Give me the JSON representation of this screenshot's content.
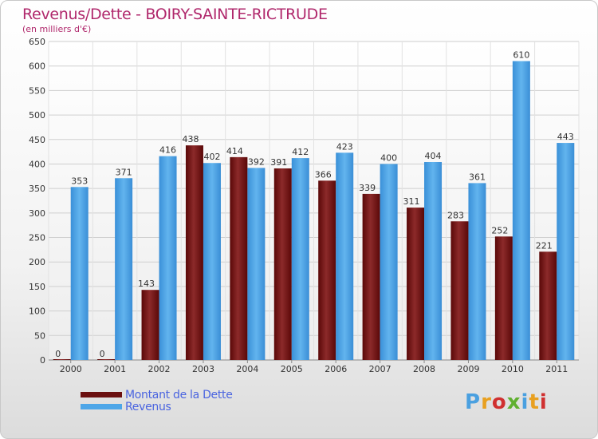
{
  "chart_data": {
    "type": "bar",
    "title": "Revenus/Dette - BOIRY-SAINTE-RICTRUDE",
    "subtitle": "(en milliers d'€)",
    "xlabel": "",
    "ylabel": "",
    "categories": [
      "2000",
      "2001",
      "2002",
      "2003",
      "2004",
      "2005",
      "2006",
      "2007",
      "2008",
      "2009",
      "2010",
      "2011"
    ],
    "series": [
      {
        "name": "Montant de la Dette",
        "color": "#7a1a1a",
        "values": [
          0,
          0,
          143,
          438,
          414,
          391,
          366,
          339,
          311,
          283,
          252,
          221
        ]
      },
      {
        "name": "Revenus",
        "color": "#4da6e8",
        "values": [
          353,
          371,
          416,
          402,
          392,
          412,
          423,
          400,
          404,
          361,
          610,
          443
        ]
      }
    ],
    "ylim": [
      0,
      650
    ],
    "yticks": [
      0,
      50,
      100,
      150,
      200,
      250,
      300,
      350,
      400,
      450,
      500,
      550,
      600,
      650
    ],
    "grid": true,
    "legend_position": "bottom-left"
  },
  "logo": {
    "text": "Proxiti",
    "colors": [
      "#4aa0e0",
      "#e8a020",
      "#d03030",
      "#60b030",
      "#4aa0e0",
      "#e8a020",
      "#d03030"
    ]
  }
}
